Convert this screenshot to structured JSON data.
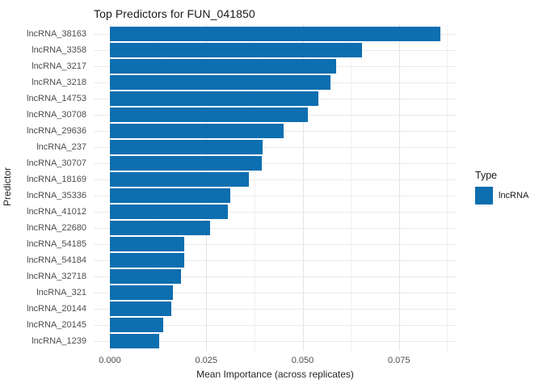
{
  "chart_data": {
    "type": "bar",
    "orientation": "horizontal",
    "title": "Top Predictors for FUN_041850",
    "xlabel": "Mean Importance (across replicates)",
    "ylabel": "Predictor",
    "categories": [
      "lncRNA_38163",
      "lncRNA_3358",
      "lncRNA_3217",
      "lncRNA_3218",
      "lncRNA_14753",
      "lncRNA_30708",
      "lncRNA_29636",
      "lncRNA_237",
      "lncRNA_30707",
      "lncRNA_18169",
      "lncRNA_35336",
      "lncRNA_41012",
      "lncRNA_22680",
      "lncRNA_54185",
      "lncRNA_54184",
      "lncRNA_32718",
      "lncRNA_321",
      "lncRNA_20144",
      "lncRNA_20145",
      "lncRNA_1239"
    ],
    "values": [
      0.0857,
      0.0654,
      0.0587,
      0.0572,
      0.0541,
      0.0514,
      0.0451,
      0.0396,
      0.0393,
      0.0361,
      0.0312,
      0.0306,
      0.026,
      0.0193,
      0.0192,
      0.0184,
      0.0163,
      0.0159,
      0.0138,
      0.0127
    ],
    "x_ticks": [
      0,
      0.025,
      0.05,
      0.075
    ],
    "x_tick_labels": [
      "0.000",
      "0.025",
      "0.050",
      "0.075"
    ],
    "xlim": [
      -0.0043,
      0.0898
    ],
    "grid": "major-and-minor-x, major-y",
    "legend": {
      "title": "Type",
      "position": "right",
      "entries": [
        {
          "label": "lncRNA",
          "color": "#0d6eb0"
        }
      ]
    },
    "colors": {
      "bar": "#0d6eb0",
      "grid_major": "#e3e3e3",
      "grid_minor": "#f1f1f1",
      "axis_text": "#4d4d4d",
      "title_text": "#1a1a1a"
    }
  }
}
